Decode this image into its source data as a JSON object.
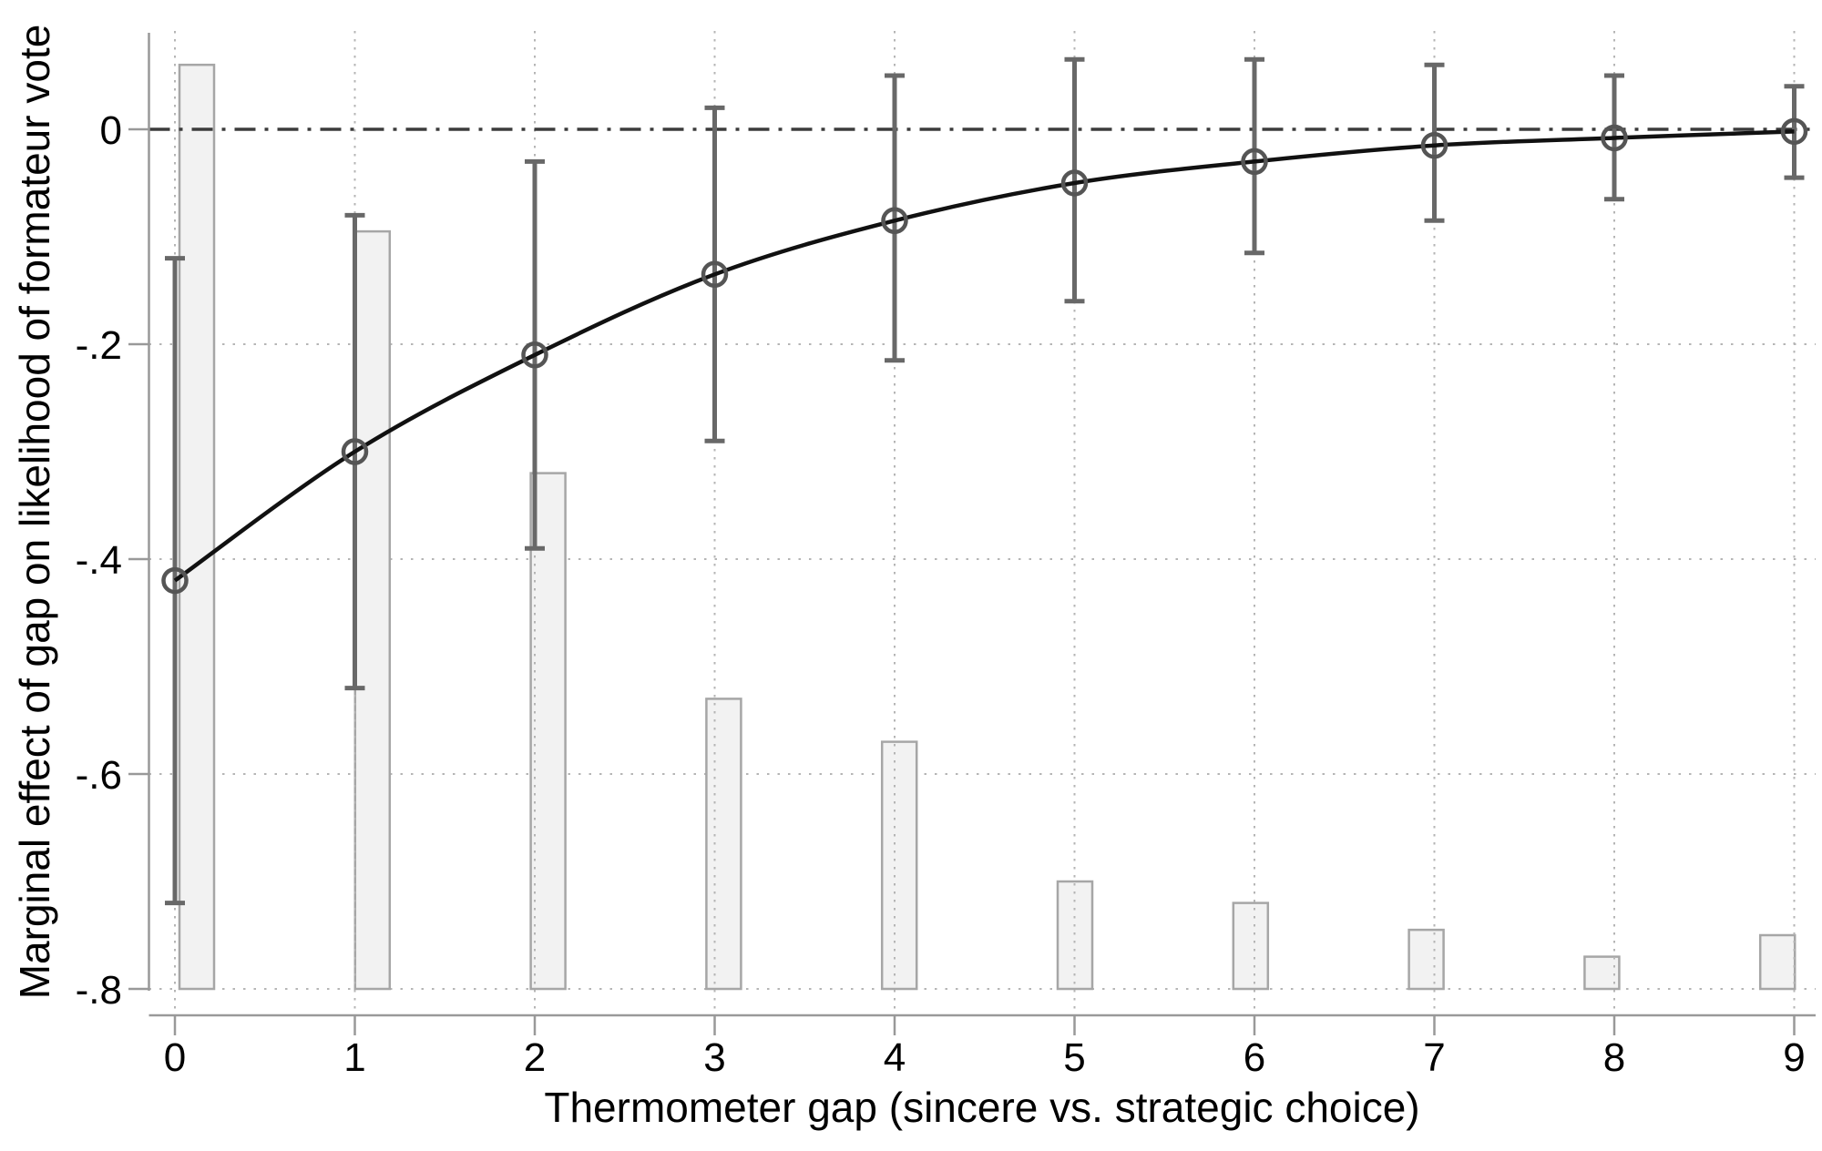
{
  "figure": {
    "xlabel": "Thermometer gap (sincere vs. strategic choice)",
    "ylabel": "Marginal effect of gap on likelihood of formateur vote"
  },
  "chart_data": {
    "type": "line",
    "description": "Marginal effect of thermometer gap on likelihood of formateur vote (open-circle markers connected by a smooth black curve) with vertical confidence-interval bars, a dashed reference line at 0, and a light-gray histogram of the gap distribution rising from the -0.8 baseline.",
    "title": "",
    "xlabel": "Thermometer gap (sincere vs. strategic choice)",
    "ylabel": "Marginal effect of gap on likelihood of formateur vote",
    "x": [
      0,
      1,
      2,
      3,
      4,
      5,
      6,
      7,
      8,
      9
    ],
    "estimates": [
      -0.42,
      -0.3,
      -0.21,
      -0.135,
      -0.085,
      -0.05,
      -0.03,
      -0.015,
      -0.008,
      -0.002
    ],
    "ci_upper": [
      -0.12,
      -0.08,
      -0.03,
      0.02,
      0.05,
      0.065,
      0.065,
      0.06,
      0.05,
      0.04
    ],
    "ci_lower": [
      -0.72,
      -0.52,
      -0.39,
      -0.29,
      -0.215,
      -0.16,
      -0.115,
      -0.085,
      -0.065,
      -0.045
    ],
    "histogram_tops": [
      0.06,
      -0.095,
      -0.32,
      -0.53,
      -0.57,
      -0.7,
      -0.72,
      -0.745,
      -0.77,
      -0.75
    ],
    "histogram_baseline": -0.8,
    "reference_line_y": 0,
    "xtick_labels": [
      "0",
      "1",
      "2",
      "3",
      "4",
      "5",
      "6",
      "7",
      "8",
      "9"
    ],
    "ytick_values": [
      0,
      -0.2,
      -0.4,
      -0.6,
      -0.8
    ],
    "ytick_labels": [
      "0",
      "-.2",
      "-.4",
      "-.6",
      "-.8"
    ],
    "xlim": [
      0,
      9
    ],
    "ylim": [
      -0.8,
      0.07
    ],
    "grid": "dotted horizontal gridlines at y ticks and dotted vertical gridlines at each x value",
    "legend": "none",
    "colors": {
      "trend_line": "#111111",
      "marker_ring": "#555555",
      "error_bar": "#686868",
      "bar_fill": "#f2f2f2",
      "bar_border": "#a6a6a6",
      "gridline": "#b5b5b5",
      "zero_line": "#3c3c3c",
      "axis_line": "#999999",
      "text": "#000000",
      "background": "#ffffff"
    }
  }
}
